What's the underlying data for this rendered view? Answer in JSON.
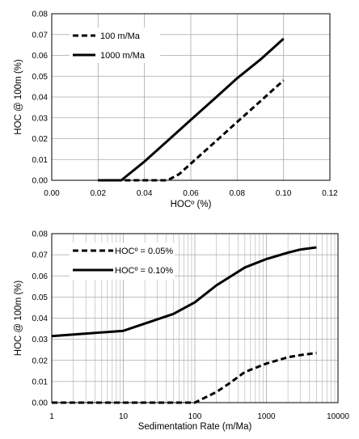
{
  "chart_data": [
    {
      "type": "line",
      "xlabel": "HOCº (%)",
      "ylabel": "HOC @ 100m (%)",
      "xlim": [
        0,
        0.12
      ],
      "ylim": [
        0,
        0.08
      ],
      "x_ticks": [
        "0.00",
        "0.02",
        "0.04",
        "0.06",
        "0.08",
        "0.10",
        "0.12"
      ],
      "y_ticks": [
        "0.00",
        "0.01",
        "0.02",
        "0.03",
        "0.04",
        "0.05",
        "0.06",
        "0.07",
        "0.08"
      ],
      "grid": "major",
      "legend_position": "top-left",
      "series": [
        {
          "name": "100 m/Ma",
          "style": "dashed",
          "x": [
            0.02,
            0.03,
            0.04,
            0.05,
            0.055,
            0.06,
            0.07,
            0.08,
            0.09,
            0.1
          ],
          "y": [
            0,
            0,
            0,
            0,
            0.003,
            0.008,
            0.018,
            0.028,
            0.038,
            0.048
          ]
        },
        {
          "name": "1000 m/Ma",
          "style": "solid",
          "x": [
            0.02,
            0.03,
            0.04,
            0.05,
            0.06,
            0.07,
            0.08,
            0.09,
            0.1
          ],
          "y": [
            0,
            0,
            0.009,
            0.019,
            0.029,
            0.039,
            0.049,
            0.058,
            0.068
          ]
        }
      ]
    },
    {
      "type": "line",
      "xlabel": "Sedimentation Rate (m/Ma)",
      "ylabel": "HOC @ 100m (%)",
      "xscale": "log",
      "xlim": [
        1,
        10000
      ],
      "ylim": [
        0,
        0.08
      ],
      "x_ticks": [
        "1",
        "10",
        "100",
        "1000",
        "10000"
      ],
      "y_ticks": [
        "0.00",
        "0.01",
        "0.02",
        "0.03",
        "0.04",
        "0.05",
        "0.06",
        "0.07",
        "0.08"
      ],
      "grid": "major-and-minor-x",
      "legend_position": "top-left",
      "series": [
        {
          "name": "HOCº = 0.05%",
          "style": "dashed",
          "x": [
            1,
            10,
            100,
            200,
            300,
            500,
            1000,
            2000,
            3000,
            5000
          ],
          "y": [
            0,
            0,
            0,
            0.005,
            0.009,
            0.0145,
            0.0185,
            0.0215,
            0.0225,
            0.0235
          ]
        },
        {
          "name": "HOCº = 0.10%",
          "style": "solid",
          "x": [
            1,
            10,
            50,
            100,
            200,
            500,
            1000,
            2000,
            3000,
            5000
          ],
          "y": [
            0.0315,
            0.034,
            0.042,
            0.0475,
            0.0555,
            0.064,
            0.068,
            0.071,
            0.0725,
            0.0735
          ]
        }
      ]
    }
  ]
}
